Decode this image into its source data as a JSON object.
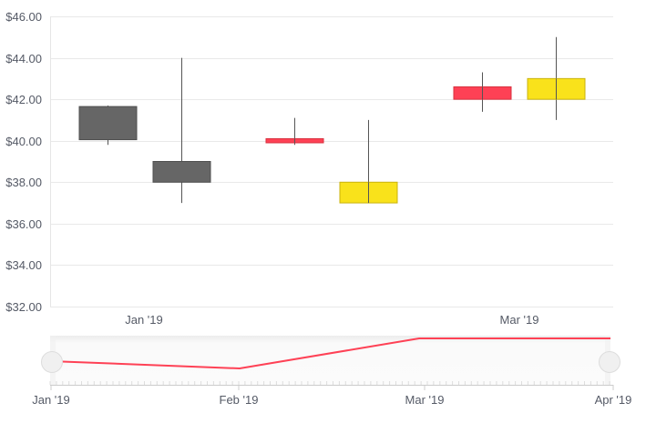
{
  "chart_data": {
    "type": "candlestick",
    "title": "",
    "xlabel": "",
    "ylabel": "",
    "ylim": [
      32,
      46
    ],
    "y_ticks": [
      "$32.00",
      "$34.00",
      "$36.00",
      "$38.00",
      "$40.00",
      "$42.00",
      "$44.00",
      "$46.00"
    ],
    "y_tick_values": [
      32,
      34,
      36,
      38,
      40,
      42,
      44,
      46
    ],
    "x_ticks": [
      "Jan '19",
      "Mar '19"
    ],
    "grid": true,
    "legend": null,
    "candles": [
      {
        "open": 41.65,
        "high": 41.7,
        "low": 39.8,
        "close": 40.05,
        "color": "#666666",
        "border": "#4f4f4f"
      },
      {
        "open": 39.0,
        "high": 44.0,
        "low": 37.0,
        "close": 38.0,
        "color": "#666666",
        "border": "#4f4f4f"
      },
      {
        "open": 40.1,
        "high": 41.1,
        "low": 39.8,
        "close": 39.9,
        "color": "#fe4155",
        "border": "#d8323f"
      },
      {
        "open": 37.0,
        "high": 41.0,
        "low": 37.0,
        "close": 38.0,
        "color": "#f9e21b",
        "border": "#c9b30e"
      },
      {
        "open": 42.0,
        "high": 43.3,
        "low": 41.4,
        "close": 42.6,
        "color": "#fe4155",
        "border": "#d8323f"
      },
      {
        "open": 42.0,
        "high": 45.0,
        "low": 41.0,
        "close": 43.0,
        "color": "#f9e21b",
        "border": "#c9b30e"
      }
    ],
    "navigator": {
      "type": "line",
      "x_ticks": [
        "Jan '19",
        "Feb '19",
        "Mar '19",
        "Apr '19"
      ],
      "series_color": "#fe4155",
      "points": [
        {
          "x": "Jan '19",
          "y": 40.9
        },
        {
          "x": "mid Feb '19",
          "y": 40.0
        },
        {
          "x": "Mar '19",
          "y": 42.6
        },
        {
          "x": "Apr '19",
          "y": 42.6
        }
      ],
      "handles": [
        "left",
        "right"
      ]
    }
  },
  "colors": {
    "grid": "#e9e9e9",
    "axis_text": "#555a66",
    "wick": "#555555",
    "navigator_bg": "#f4f4f4",
    "handle_fill": "#f0f0f0",
    "handle_stroke": "#dddddd"
  }
}
